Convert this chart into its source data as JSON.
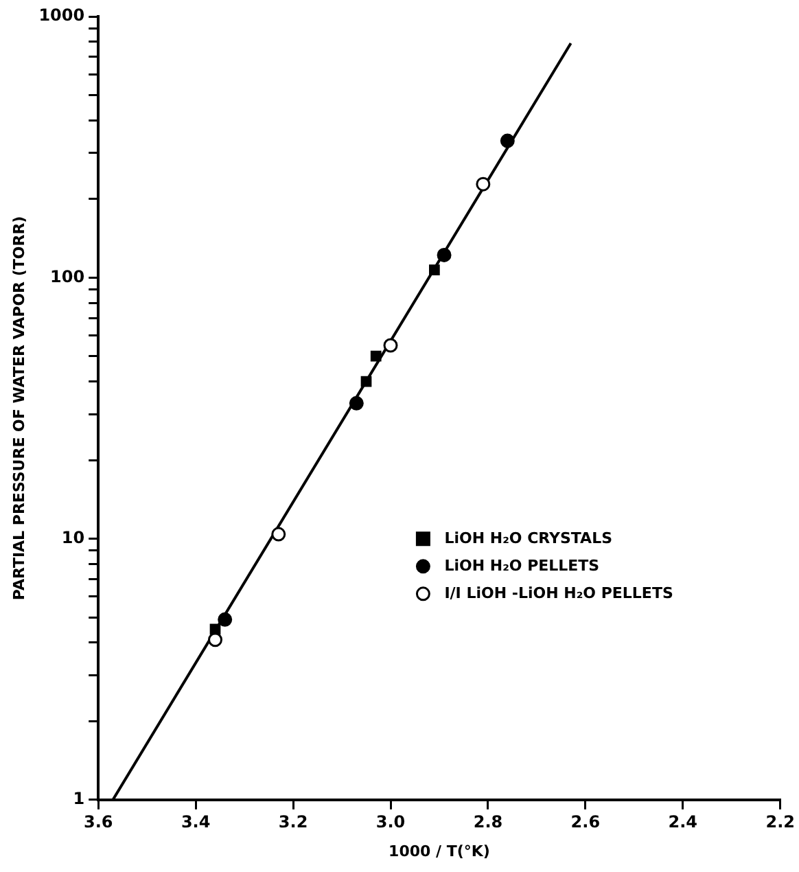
{
  "chart_data": {
    "type": "scatter",
    "xlabel": "1000 / T(°K)",
    "ylabel": "PARTIAL PRESSURE OF WATER VAPOR (TORR)",
    "log": "y",
    "grid": false,
    "legend": "bottom right",
    "xlim": [
      3.6,
      2.2
    ],
    "xticks": [
      3.6,
      3.4,
      3.2,
      {
        "value": 3.0,
        "label": "3.0"
      },
      2.8,
      2.6,
      2.4,
      2.2
    ],
    "ylim": [
      1,
      1000
    ],
    "yticks": [
      1,
      {
        "value": 2,
        "label": null
      },
      {
        "value": 3,
        "label": null
      },
      {
        "value": 4,
        "label": null
      },
      {
        "value": 5,
        "label": null
      },
      {
        "value": 6,
        "label": null
      },
      {
        "value": 7,
        "label": null
      },
      {
        "value": 8,
        "label": null
      },
      {
        "value": 9,
        "label": null
      },
      10,
      {
        "value": 20,
        "label": null
      },
      {
        "value": 30,
        "label": null
      },
      {
        "value": 40,
        "label": null
      },
      {
        "value": 50,
        "label": null
      },
      {
        "value": 60,
        "label": null
      },
      {
        "value": 70,
        "label": null
      },
      {
        "value": 80,
        "label": null
      },
      {
        "value": 90,
        "label": null
      },
      100,
      {
        "value": 200,
        "label": null
      },
      {
        "value": 300,
        "label": null
      },
      {
        "value": 400,
        "label": null
      },
      {
        "value": 500,
        "label": null
      },
      {
        "value": 600,
        "label": null
      },
      {
        "value": 700,
        "label": null
      },
      {
        "value": 800,
        "label": null
      },
      {
        "value": 900,
        "label": null
      },
      1000
    ],
    "series": [
      {
        "name": "LiOH H₂O CRYSTALS",
        "color": "#000000",
        "marker": "square",
        "x": [
          3.36,
          3.05,
          3.03,
          2.91
        ],
        "values": [
          4.5,
          40,
          50,
          107
        ]
      },
      {
        "name": "LiOH H₂O PELLETS",
        "color": "#000000",
        "marker": "circle",
        "x": [
          3.34,
          3.07,
          2.89,
          2.76
        ],
        "values": [
          4.9,
          33,
          122,
          334
        ]
      },
      {
        "name": "I/I LiOH -LiOH H₂O PELLETS",
        "color": "#ffffff",
        "marker": "circle",
        "x": [
          3.36,
          3.23,
          3.0,
          2.81
        ],
        "values": [
          4.1,
          10.4,
          55,
          228
        ]
      },
      {
        "type": "line",
        "color": "#000000",
        "marker": "none",
        "x": [
          3.57,
          2.63
        ],
        "values": [
          1,
          790
        ]
      }
    ]
  }
}
